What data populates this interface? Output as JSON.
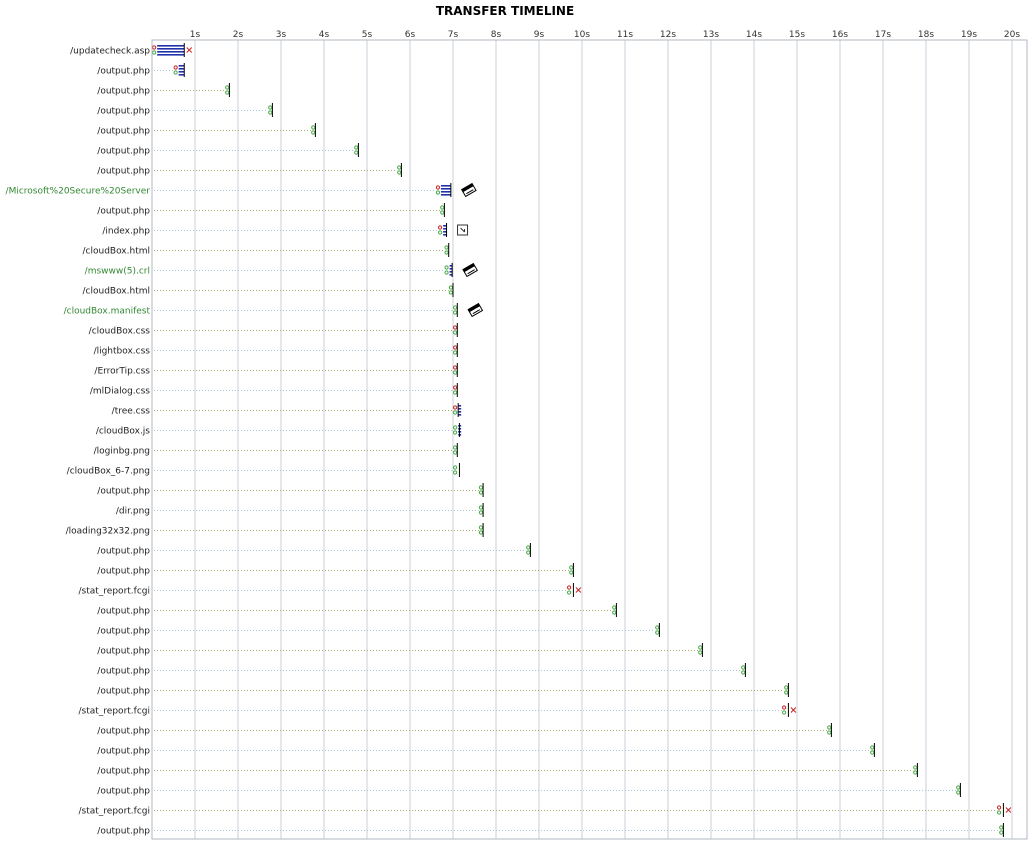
{
  "chart_data": {
    "type": "timeline",
    "title": "TRANSFER TIMELINE",
    "x_unit": "s",
    "xlim": [
      0,
      20
    ],
    "x_ticks": [
      "1s",
      "2s",
      "3s",
      "4s",
      "5s",
      "6s",
      "7s",
      "8s",
      "9s",
      "10s",
      "11s",
      "12s",
      "13s",
      "14s",
      "15s",
      "16s",
      "17s",
      "18s",
      "19s",
      "20s"
    ],
    "colors": {
      "label_default": "#222222",
      "label_highlight": "#338833",
      "grid": "#c8d0d8",
      "guide_blue": "#a8c8d8",
      "guide_olive": "#a8a868",
      "marker_green": "#44aa44",
      "marker_red": "#cc2222",
      "transfer_bar": "#2233aa",
      "end_line": "#000000"
    },
    "rows": [
      {
        "url": "/updatecheck.asp",
        "start": 0.05,
        "end": 0.75,
        "type": "transfer",
        "status": "error",
        "green": false
      },
      {
        "url": "/output.php",
        "start": 0.55,
        "end": 0.75,
        "type": "transfer",
        "status": "red",
        "green": false
      },
      {
        "url": "/output.php",
        "start": 1.75,
        "end": 1.8,
        "type": "normal",
        "status": "ok",
        "green": false
      },
      {
        "url": "/output.php",
        "start": 2.75,
        "end": 2.8,
        "type": "normal",
        "status": "ok",
        "green": false
      },
      {
        "url": "/output.php",
        "start": 3.75,
        "end": 3.8,
        "type": "normal",
        "status": "ok",
        "green": false
      },
      {
        "url": "/output.php",
        "start": 4.75,
        "end": 4.8,
        "type": "normal",
        "status": "ok",
        "green": false
      },
      {
        "url": "/output.php",
        "start": 5.75,
        "end": 5.8,
        "type": "normal",
        "status": "ok",
        "green": false
      },
      {
        "url": "/Microsoft%20Secure%20Server",
        "start": 6.65,
        "end": 6.95,
        "type": "transfer",
        "status": "red",
        "green": true,
        "extra": "disk"
      },
      {
        "url": "/output.php",
        "start": 6.75,
        "end": 6.8,
        "type": "normal",
        "status": "ok",
        "green": false
      },
      {
        "url": "/index.php",
        "start": 6.7,
        "end": 6.85,
        "type": "transfer",
        "status": "red",
        "green": false,
        "extra": "box"
      },
      {
        "url": "/cloudBox.html",
        "start": 6.85,
        "end": 6.9,
        "type": "normal",
        "status": "ok",
        "green": false
      },
      {
        "url": "/mswww(5).crl",
        "start": 6.85,
        "end": 6.98,
        "type": "transfer",
        "status": "ok",
        "green": true,
        "extra": "disk"
      },
      {
        "url": "/cloudBox.html",
        "start": 6.95,
        "end": 7.0,
        "type": "normal",
        "status": "ok",
        "green": false
      },
      {
        "url": "/cloudBox.manifest",
        "start": 7.05,
        "end": 7.1,
        "type": "normal",
        "status": "ok",
        "green": true,
        "extra": "disk"
      },
      {
        "url": "/cloudBox.css",
        "start": 7.05,
        "end": 7.1,
        "type": "normal",
        "status": "red",
        "green": false
      },
      {
        "url": "/lightbox.css",
        "start": 7.05,
        "end": 7.1,
        "type": "normal",
        "status": "red",
        "green": false
      },
      {
        "url": "/ErrorTip.css",
        "start": 7.05,
        "end": 7.1,
        "type": "normal",
        "status": "red",
        "green": false
      },
      {
        "url": "/mlDialog.css",
        "start": 7.05,
        "end": 7.1,
        "type": "normal",
        "status": "red",
        "green": false
      },
      {
        "url": "/tree.css",
        "start": 7.05,
        "end": 7.12,
        "type": "transfer",
        "status": "red",
        "green": false
      },
      {
        "url": "/cloudBox.js",
        "start": 7.05,
        "end": 7.15,
        "type": "transfer",
        "status": "ok",
        "green": false
      },
      {
        "url": "/loginbg.png",
        "start": 7.05,
        "end": 7.1,
        "type": "normal",
        "status": "ok",
        "green": false
      },
      {
        "url": "/cloudBox_6-7.png",
        "start": 7.05,
        "end": 7.15,
        "type": "normal",
        "status": "ok",
        "green": false
      },
      {
        "url": "/output.php",
        "start": 7.65,
        "end": 7.7,
        "type": "normal",
        "status": "ok",
        "green": false
      },
      {
        "url": "/dir.png",
        "start": 7.65,
        "end": 7.7,
        "type": "normal",
        "status": "ok",
        "green": false
      },
      {
        "url": "/loading32x32.png",
        "start": 7.65,
        "end": 7.7,
        "type": "normal",
        "status": "ok",
        "green": false
      },
      {
        "url": "/output.php",
        "start": 8.75,
        "end": 8.8,
        "type": "normal",
        "status": "ok",
        "green": false
      },
      {
        "url": "/output.php",
        "start": 9.75,
        "end": 9.8,
        "type": "normal",
        "status": "ok",
        "green": false
      },
      {
        "url": "/stat_report.fcgi",
        "start": 9.7,
        "end": 9.8,
        "type": "normal",
        "status": "error",
        "green": false
      },
      {
        "url": "/output.php",
        "start": 10.75,
        "end": 10.8,
        "type": "normal",
        "status": "ok",
        "green": false
      },
      {
        "url": "/output.php",
        "start": 11.75,
        "end": 11.8,
        "type": "normal",
        "status": "ok",
        "green": false
      },
      {
        "url": "/output.php",
        "start": 12.75,
        "end": 12.8,
        "type": "normal",
        "status": "ok",
        "green": false
      },
      {
        "url": "/output.php",
        "start": 13.75,
        "end": 13.8,
        "type": "normal",
        "status": "ok",
        "green": false
      },
      {
        "url": "/output.php",
        "start": 14.75,
        "end": 14.8,
        "type": "normal",
        "status": "ok",
        "green": false
      },
      {
        "url": "/stat_report.fcgi",
        "start": 14.7,
        "end": 14.8,
        "type": "normal",
        "status": "error",
        "green": false
      },
      {
        "url": "/output.php",
        "start": 15.75,
        "end": 15.8,
        "type": "normal",
        "status": "ok",
        "green": false
      },
      {
        "url": "/output.php",
        "start": 16.75,
        "end": 16.8,
        "type": "normal",
        "status": "ok",
        "green": false
      },
      {
        "url": "/output.php",
        "start": 17.75,
        "end": 17.8,
        "type": "normal",
        "status": "ok",
        "green": false
      },
      {
        "url": "/output.php",
        "start": 18.75,
        "end": 18.8,
        "type": "normal",
        "status": "ok",
        "green": false
      },
      {
        "url": "/stat_report.fcgi",
        "start": 19.7,
        "end": 19.8,
        "type": "normal",
        "status": "error",
        "green": false
      },
      {
        "url": "/output.php",
        "start": 19.75,
        "end": 19.8,
        "type": "normal",
        "status": "ok",
        "green": false
      }
    ]
  }
}
